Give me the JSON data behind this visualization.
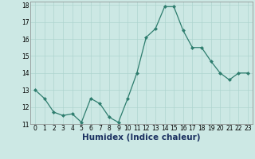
{
  "x": [
    0,
    1,
    2,
    3,
    4,
    5,
    6,
    7,
    8,
    9,
    10,
    11,
    12,
    13,
    14,
    15,
    16,
    17,
    18,
    19,
    20,
    21,
    22,
    23
  ],
  "y": [
    13.0,
    12.5,
    11.7,
    11.5,
    11.6,
    11.1,
    12.5,
    12.2,
    11.4,
    11.1,
    12.5,
    14.0,
    16.1,
    16.6,
    17.9,
    17.9,
    16.5,
    15.5,
    15.5,
    14.7,
    14.0,
    13.6,
    14.0,
    14.0
  ],
  "line_color": "#2e7d6e",
  "marker_color": "#2e7d6e",
  "bg_color": "#cce8e4",
  "grid_color": "#aed4cf",
  "xlabel": "Humidex (Indice chaleur)",
  "xlim": [
    -0.5,
    23.5
  ],
  "ylim": [
    11,
    18.2
  ],
  "yticks": [
    11,
    12,
    13,
    14,
    15,
    16,
    17,
    18
  ],
  "xticks": [
    0,
    1,
    2,
    3,
    4,
    5,
    6,
    7,
    8,
    9,
    10,
    11,
    12,
    13,
    14,
    15,
    16,
    17,
    18,
    19,
    20,
    21,
    22,
    23
  ],
  "tick_fontsize": 5.5,
  "xlabel_fontsize": 7.5,
  "linewidth": 0.9,
  "markersize": 2.0
}
